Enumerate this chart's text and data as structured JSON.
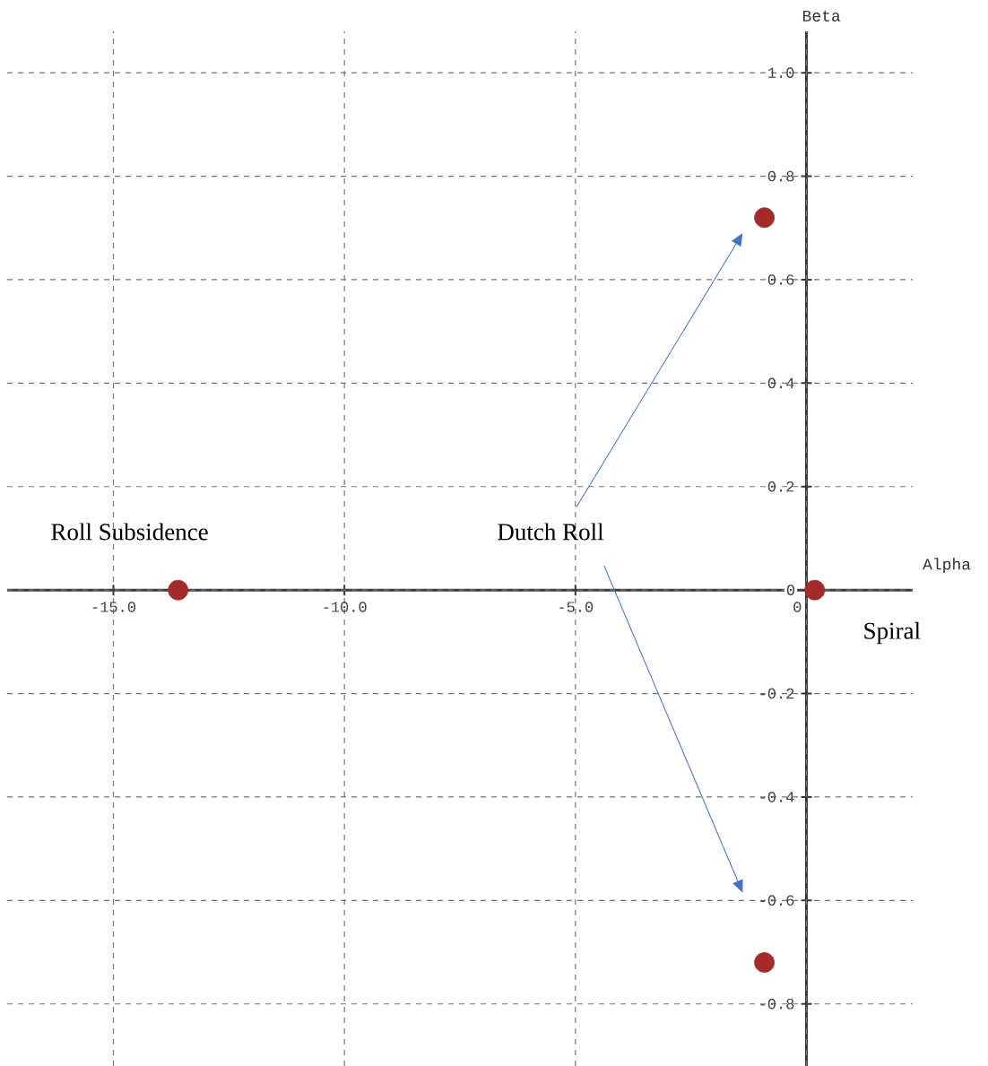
{
  "chart_data": {
    "type": "scatter",
    "xlabel": "Alpha",
    "ylabel": "Beta",
    "x": [
      -13.6,
      -0.91,
      -0.91,
      0.18
    ],
    "values": [
      0,
      0.72,
      -0.72,
      0
    ],
    "color": "#a52a2a",
    "marker": "circle",
    "grid": true,
    "xlim": [
      -17.3,
      2.3
    ],
    "ylim": [
      -0.92,
      1.08
    ],
    "xticks": [
      {
        "value": -15,
        "label": "-15.0"
      },
      {
        "value": -10,
        "label": "-10.0"
      },
      {
        "value": -5,
        "label": "-5.0"
      },
      0
    ],
    "yticks": [
      {
        "value": -0.8,
        "label": "-0.8"
      },
      {
        "value": -0.6,
        "label": "-0.6"
      },
      {
        "value": -0.4,
        "label": "-0.4"
      },
      {
        "value": -0.2,
        "label": "-0.2"
      },
      0,
      {
        "value": 0.2,
        "label": "0.2"
      },
      {
        "value": 0.4,
        "label": "0.4"
      },
      {
        "value": 0.6,
        "label": "0.6"
      },
      {
        "value": 0.8,
        "label": "0.8"
      },
      {
        "value": 1.0,
        "label": "1.0"
      }
    ],
    "annotations": [
      "Roll Subsidence",
      "Dutch Roll",
      "Spiral"
    ]
  }
}
